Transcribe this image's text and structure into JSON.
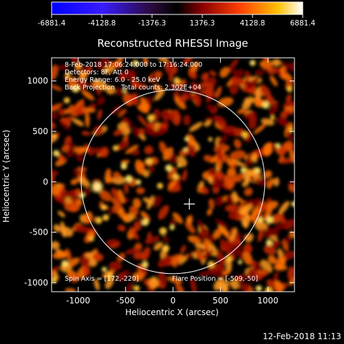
{
  "colorbar": {
    "ticks": [
      "-6881.4",
      "-4128.8",
      "-1376.3",
      "1376.3",
      "4128.8",
      "6881.4"
    ]
  },
  "chart_data": {
    "type": "heatmap",
    "title": "Reconstructed RHESSI Image",
    "xlabel": "Heliocentric X (arcsec)",
    "ylabel": "Heliocentric Y (arcsec)",
    "xlim": [
      -1280,
      1280
    ],
    "ylim": [
      -1090,
      1230
    ],
    "xticks": [
      -1000,
      -500,
      0,
      500,
      1000
    ],
    "yticks": [
      -1000,
      -500,
      0,
      500,
      1000
    ],
    "value_range": [
      -6881.4,
      6881.4
    ],
    "colormap": "hot",
    "solar_limb_radius": 968,
    "spin_axis": [
      172,
      -220
    ],
    "flare_position": [
      -509,
      -50
    ],
    "annotations": {
      "time_range": "8-Feb-2018 17:06:24.000 to 17:16:24.000",
      "detectors": "Detectors: 8F, Att 0",
      "energy": "Energy Range: 6.0 - 25.0 keV",
      "method": "Back Projection   Total counts: 2.302E+04",
      "spin_axis_label": "Spin Axis = [172,-220]",
      "flare_label": "Flare Position = [-509,-50]"
    }
  },
  "footer": {
    "timestamp": "12-Feb-2018 11:13"
  }
}
